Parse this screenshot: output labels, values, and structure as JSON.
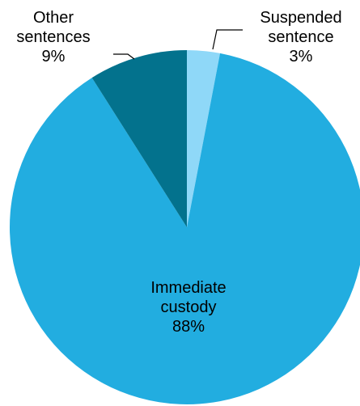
{
  "chart_data": {
    "type": "pie",
    "title": "",
    "slices": [
      {
        "label_lines": [
          "Suspended",
          "sentence"
        ],
        "value": 3,
        "value_label": "3%",
        "color": "#8fd8f8"
      },
      {
        "label_lines": [
          "Immediate",
          "custody"
        ],
        "value": 88,
        "value_label": "88%",
        "color": "#22ade0"
      },
      {
        "label_lines": [
          "Other",
          "sentences"
        ],
        "value": 9,
        "value_label": "9%",
        "color": "#03728d"
      }
    ]
  }
}
